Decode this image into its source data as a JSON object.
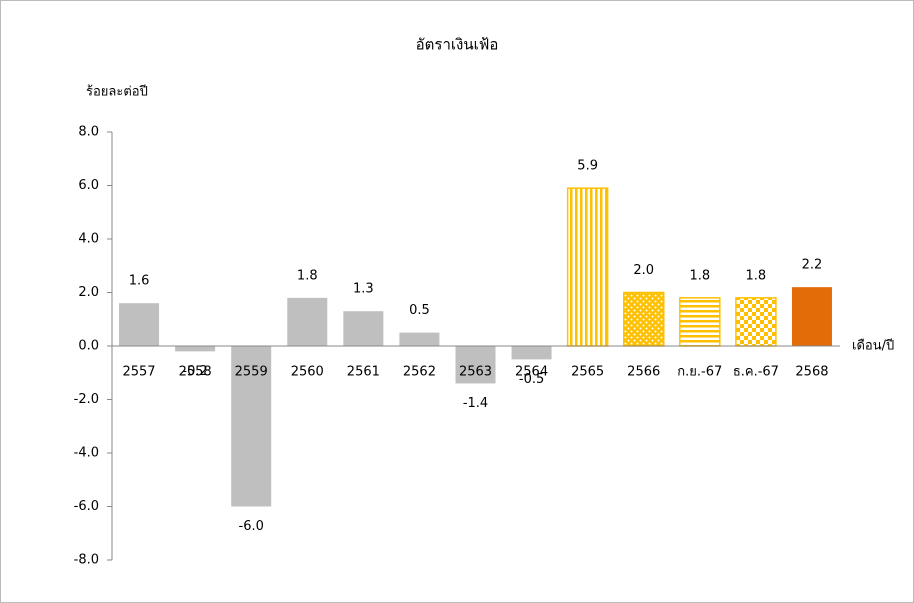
{
  "chart_data": {
    "type": "bar",
    "title": "อัตราเงินเฟ้อ",
    "y_label": "ร้อยละต่อปี",
    "x_label": "เดือน/ปี",
    "categories": [
      "2557",
      "2558",
      "2559",
      "2560",
      "2561",
      "2562",
      "2563",
      "2564",
      "2565",
      "2566",
      "ก.ย.-67",
      "ธ.ค.-67",
      "2568"
    ],
    "values": [
      1.6,
      -0.2,
      -6.0,
      1.8,
      1.3,
      0.5,
      -1.4,
      -0.5,
      5.9,
      2.0,
      1.8,
      1.8,
      2.2
    ],
    "value_labels": [
      "1.6",
      "-0.2",
      "-6.0",
      "1.8",
      "1.3",
      "0.5",
      "-1.4",
      "-0.5",
      "5.9",
      "2.0",
      "1.8",
      "1.8",
      "2.2"
    ],
    "colors": [
      "#bfbfbf",
      "#bfbfbf",
      "#bfbfbf",
      "#bfbfbf",
      "#bfbfbf",
      "#bfbfbf",
      "#bfbfbf",
      "#bfbfbf",
      "#ffc000",
      "#ffc000",
      "#ffc000",
      "#ffc000",
      "#e36c09"
    ],
    "patterns": [
      "solid",
      "solid",
      "solid",
      "solid",
      "solid",
      "solid",
      "solid",
      "solid",
      "vertical",
      "dots",
      "horizontal",
      "checker",
      "solid"
    ],
    "negative_color": "#ff0000",
    "ylim": [
      -8,
      8
    ],
    "yticks": [
      {
        "value": -8,
        "label": "-8.0"
      },
      {
        "value": -6,
        "label": "-6.0"
      },
      {
        "value": -4,
        "label": "-4.0"
      },
      {
        "value": -2,
        "label": "-2.0"
      },
      {
        "value": 0,
        "label": "0.0"
      },
      {
        "value": 2,
        "label": "2.0"
      },
      {
        "value": 4,
        "label": "4.0"
      },
      {
        "value": 6,
        "label": "6.0"
      },
      {
        "value": 8,
        "label": "8.0"
      }
    ]
  }
}
